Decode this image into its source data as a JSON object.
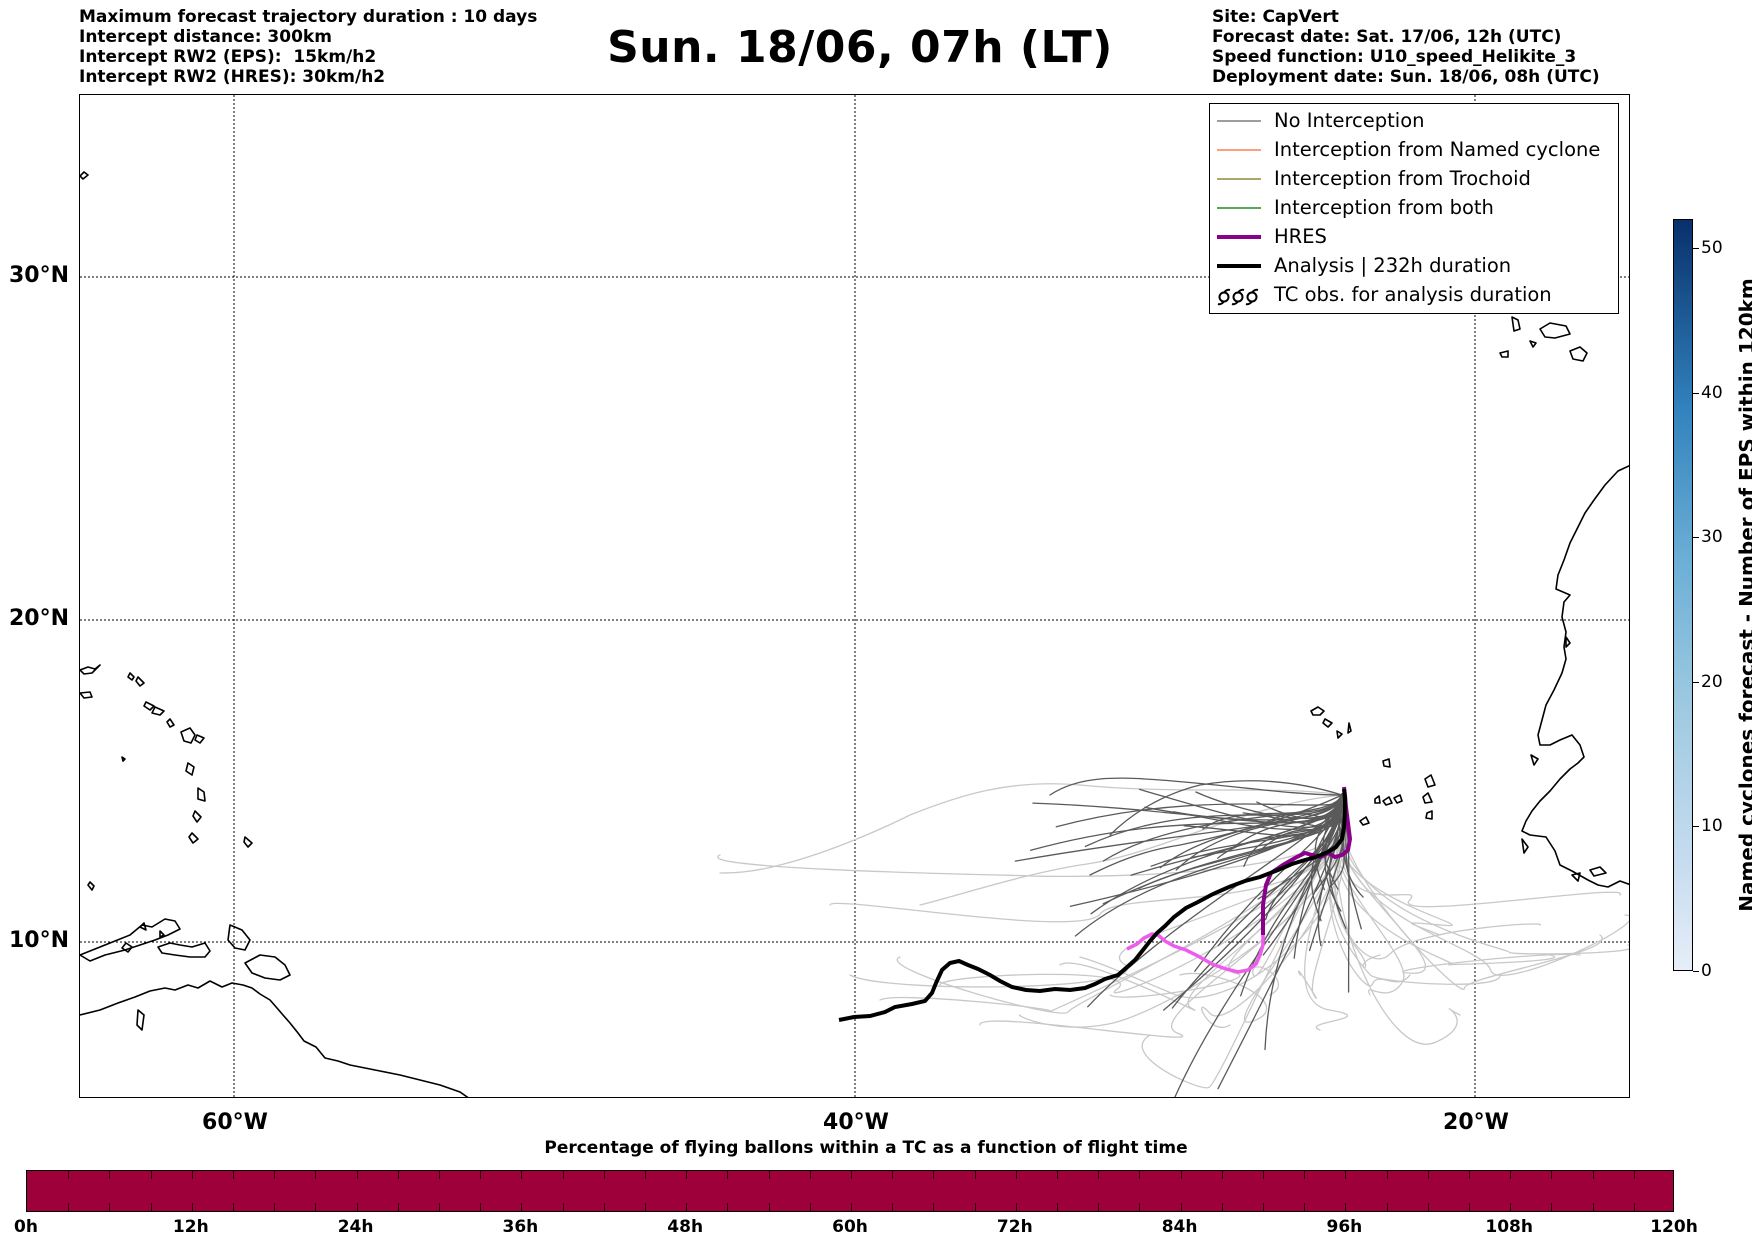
{
  "header": {
    "left_lines": [
      "Maximum forecast trajectory duration : 10 days",
      "Intercept distance: 300km",
      "Intercept RW2 (EPS):  15km/h2",
      "Intercept RW2 (HRES): 30km/h2"
    ],
    "title": "Sun. 18/06, 07h (LT)",
    "right_lines": [
      "Site: CapVert",
      "Forecast date: Sat. 17/06, 12h (UTC)",
      "Speed function: U10_speed_Helikite_3",
      "Deployment date: Sun. 18/06, 08h (UTC)"
    ]
  },
  "map": {
    "lat_labels": [
      "30°N",
      "20°N",
      "10°N"
    ],
    "lon_labels": [
      "60°W",
      "40°W",
      "20°W"
    ],
    "colors": {
      "eps_near": "#5a5a5a",
      "eps_far": "#c8c8c8",
      "hres": "#8b008b",
      "hres_early": "#ee5cee",
      "analysis": "#000000"
    }
  },
  "legend": {
    "items": [
      {
        "label": "No Interception",
        "color": "#7f7f7f",
        "icon": "thin-line"
      },
      {
        "label": "Interception from Named cyclone",
        "color": "#ff7f50",
        "icon": "thin-line"
      },
      {
        "label": "Interception from Trochoid",
        "color": "#8b8b3a",
        "icon": "thin-line"
      },
      {
        "label": "Interception from both",
        "color": "#228b22",
        "icon": "thin-line"
      },
      {
        "label": "HRES",
        "color": "#8b008b",
        "icon": "thick-line"
      },
      {
        "label": "Analysis | 232h duration",
        "color": "#000000",
        "icon": "thick-line"
      },
      {
        "label": "TC obs. for analysis duration",
        "color": "#000000",
        "icon": "cyclone-symbols"
      }
    ]
  },
  "colorbar_vertical": {
    "label": "Named cyclones forecast - Number of EPS within 120km",
    "ticks": [
      "0",
      "10",
      "20",
      "30",
      "40",
      "50"
    ],
    "range": [
      0,
      52
    ]
  },
  "colorbar_horizontal": {
    "title": "Percentage of flying ballons within a TC as a function of flight time",
    "ticks": [
      "0h",
      "12h",
      "24h",
      "36h",
      "48h",
      "60h",
      "72h",
      "84h",
      "96h",
      "108h",
      "120h"
    ],
    "fill_color": "#9e003a"
  }
}
